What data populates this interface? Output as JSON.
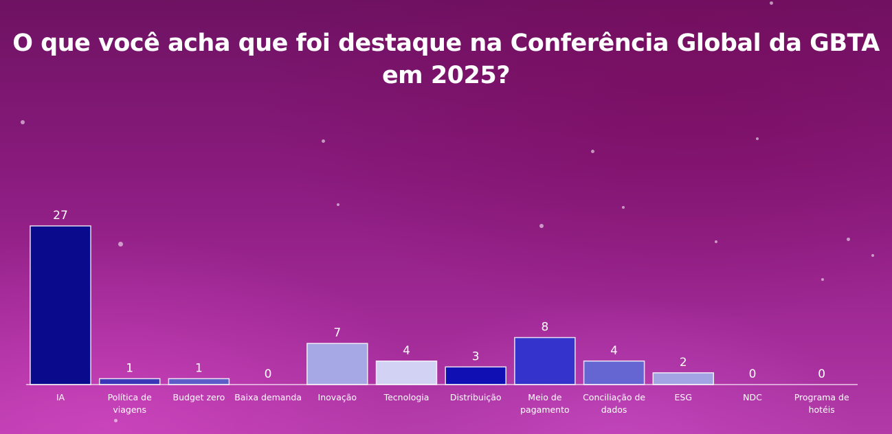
{
  "chart_data": {
    "type": "bar",
    "title": "O que você acha que foi destaque na Conferência Global da GBTA em 2025?",
    "title_lines": [
      "O que você acha que foi destaque na Conferência Global da GBTA",
      "em 2025?"
    ],
    "categories": [
      [
        "IA"
      ],
      [
        "Política de",
        "viagens"
      ],
      [
        "Budget zero"
      ],
      [
        "Baixa demanda"
      ],
      [
        "Inovação"
      ],
      [
        "Tecnologia"
      ],
      [
        "Distribuição"
      ],
      [
        "Meio de",
        "pagamento"
      ],
      [
        "Conciliação de",
        "dados"
      ],
      [
        "ESG"
      ],
      [
        "NDC"
      ],
      [
        "Programa de",
        "hotéis"
      ]
    ],
    "values": [
      27,
      1,
      1,
      0,
      7,
      4,
      3,
      8,
      4,
      2,
      0,
      0
    ],
    "colors": [
      "#0a0a8c",
      "#3a36b8",
      "#5b5cc8",
      "#6f70d0",
      "#a6a8e6",
      "#d2d3f4",
      "#0f0fb4",
      "#3434cc",
      "#6566d2",
      "#a2a4e4",
      "#8c8ee0",
      "#8c8ee0"
    ],
    "ylim": [
      0,
      27
    ],
    "grid": false,
    "legend": "none"
  }
}
